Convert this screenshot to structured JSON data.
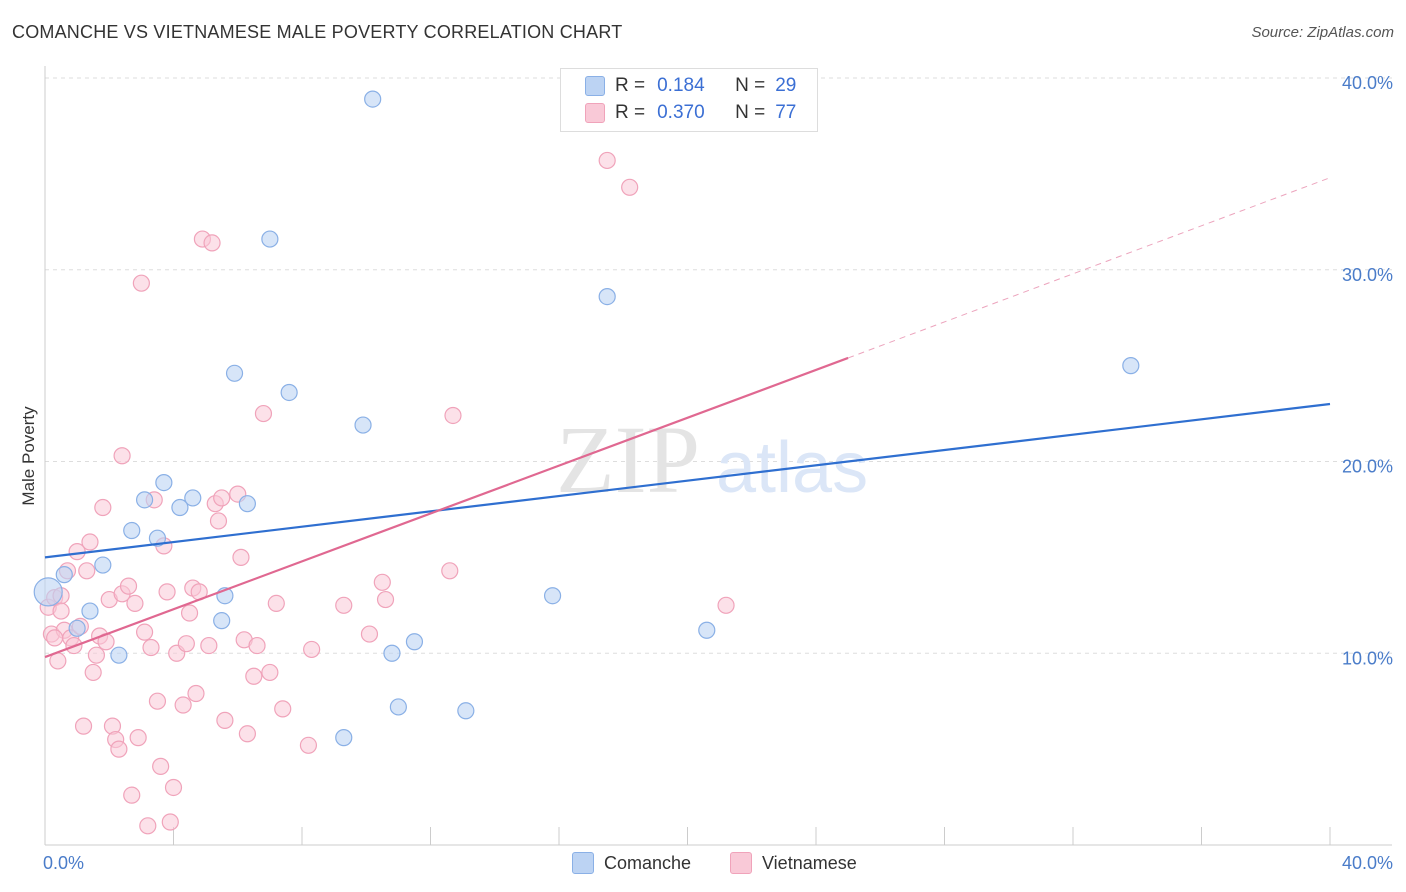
{
  "header": {
    "title": "COMANCHE VS VIETNAMESE MALE POVERTY CORRELATION CHART",
    "source": "Source: ZipAtlas.com"
  },
  "colors": {
    "comanche_fill": "#bcd3f3",
    "comanche_stroke": "#8ab0e6",
    "comanche_line": "#2f6fd0",
    "vietnamese_fill": "#f9c9d7",
    "vietnamese_stroke": "#f0a3ba",
    "vietnamese_line": "#e06891",
    "tick_text": "#4a7cc9",
    "grid": "#dddddd"
  },
  "legend": {
    "rows": [
      {
        "r_label": "R =",
        "r_value": "0.184",
        "n_label": "N =",
        "n_value": "29"
      },
      {
        "r_label": "R =",
        "r_value": "0.370",
        "n_label": "N =",
        "n_value": "77"
      }
    ]
  },
  "bottom_legend": {
    "comanche": "Comanche",
    "vietnamese": "Vietnamese"
  },
  "watermark": {
    "zip": "ZIP",
    "atlas": "atlas"
  },
  "chart_data": {
    "type": "scatter",
    "title": "COMANCHE VS VIETNAMESE MALE POVERTY CORRELATION CHART",
    "xlabel": "",
    "ylabel": "Male Poverty",
    "xlim": [
      0,
      40
    ],
    "ylim": [
      0,
      40
    ],
    "x_tick_labels": [
      {
        "value": 0,
        "label": "0.0%"
      },
      {
        "value": 40,
        "label": "40.0%"
      }
    ],
    "y_tick_labels": [
      {
        "value": 10,
        "label": "10.0%"
      },
      {
        "value": 20,
        "label": "20.0%"
      },
      {
        "value": 30,
        "label": "30.0%"
      },
      {
        "value": 40,
        "label": "40.0%"
      }
    ],
    "series": [
      {
        "name": "Comanche",
        "r": 0.184,
        "n": 29,
        "trend": {
          "x0": 0,
          "y0": 15.0,
          "x1": 40,
          "y1": 23.0,
          "dashed_to": null
        },
        "points": [
          [
            0.1,
            13.2
          ],
          [
            0.6,
            14.1
          ],
          [
            1.0,
            11.3
          ],
          [
            1.4,
            12.2
          ],
          [
            1.8,
            14.6
          ],
          [
            2.3,
            9.9
          ],
          [
            2.7,
            16.4
          ],
          [
            3.1,
            18.0
          ],
          [
            3.5,
            16.0
          ],
          [
            3.7,
            18.9
          ],
          [
            4.2,
            17.6
          ],
          [
            4.6,
            18.1
          ],
          [
            5.5,
            11.7
          ],
          [
            5.6,
            13.0
          ],
          [
            5.9,
            24.6
          ],
          [
            6.3,
            17.8
          ],
          [
            7.0,
            31.6
          ],
          [
            7.6,
            23.6
          ],
          [
            9.3,
            5.6
          ],
          [
            9.9,
            21.9
          ],
          [
            10.2,
            38.9
          ],
          [
            10.8,
            10.0
          ],
          [
            11.0,
            7.2
          ],
          [
            11.5,
            10.6
          ],
          [
            13.1,
            7.0
          ],
          [
            15.8,
            13.0
          ],
          [
            17.5,
            28.6
          ],
          [
            20.6,
            11.2
          ],
          [
            33.8,
            25.0
          ]
        ]
      },
      {
        "name": "Vietnamese",
        "r": 0.37,
        "n": 77,
        "trend": {
          "x0": 0,
          "y0": 9.8,
          "x1": 25.0,
          "y1": 25.4,
          "dashed_to": {
            "x": 40,
            "y": 34.8
          }
        },
        "points": [
          [
            0.1,
            12.4
          ],
          [
            0.2,
            11.0
          ],
          [
            0.3,
            12.9
          ],
          [
            0.4,
            9.6
          ],
          [
            0.5,
            13.0
          ],
          [
            0.6,
            11.2
          ],
          [
            0.7,
            14.3
          ],
          [
            0.8,
            10.8
          ],
          [
            0.9,
            10.4
          ],
          [
            1.0,
            15.3
          ],
          [
            1.2,
            6.2
          ],
          [
            1.3,
            14.3
          ],
          [
            1.4,
            15.8
          ],
          [
            1.5,
            9.0
          ],
          [
            1.6,
            9.9
          ],
          [
            1.7,
            10.9
          ],
          [
            1.8,
            17.6
          ],
          [
            1.9,
            10.6
          ],
          [
            2.0,
            12.8
          ],
          [
            2.1,
            6.2
          ],
          [
            2.2,
            5.5
          ],
          [
            2.3,
            5.0
          ],
          [
            2.4,
            13.1
          ],
          [
            2.4,
            20.3
          ],
          [
            2.6,
            13.5
          ],
          [
            2.7,
            2.6
          ],
          [
            2.8,
            12.6
          ],
          [
            2.9,
            5.6
          ],
          [
            3.0,
            29.3
          ],
          [
            3.1,
            11.1
          ],
          [
            3.2,
            1.0
          ],
          [
            3.3,
            10.3
          ],
          [
            3.4,
            18.0
          ],
          [
            3.5,
            7.5
          ],
          [
            3.6,
            4.1
          ],
          [
            3.7,
            15.6
          ],
          [
            3.8,
            13.2
          ],
          [
            3.9,
            1.2
          ],
          [
            4.0,
            3.0
          ],
          [
            4.1,
            10.0
          ],
          [
            4.3,
            7.3
          ],
          [
            4.4,
            10.5
          ],
          [
            4.5,
            12.1
          ],
          [
            4.6,
            13.4
          ],
          [
            4.7,
            7.9
          ],
          [
            4.8,
            13.2
          ],
          [
            4.9,
            31.6
          ],
          [
            5.1,
            10.4
          ],
          [
            5.2,
            31.4
          ],
          [
            5.3,
            17.8
          ],
          [
            5.4,
            16.9
          ],
          [
            5.5,
            18.1
          ],
          [
            5.6,
            6.5
          ],
          [
            6.0,
            18.3
          ],
          [
            6.1,
            15.0
          ],
          [
            6.2,
            10.7
          ],
          [
            6.3,
            5.8
          ],
          [
            6.5,
            8.8
          ],
          [
            6.6,
            10.4
          ],
          [
            6.8,
            22.5
          ],
          [
            7.0,
            9.0
          ],
          [
            7.2,
            12.6
          ],
          [
            7.4,
            7.1
          ],
          [
            8.2,
            5.2
          ],
          [
            8.3,
            10.2
          ],
          [
            9.3,
            12.5
          ],
          [
            10.1,
            11.0
          ],
          [
            10.5,
            13.7
          ],
          [
            10.6,
            12.8
          ],
          [
            12.6,
            14.3
          ],
          [
            12.7,
            22.4
          ],
          [
            17.5,
            35.7
          ],
          [
            18.2,
            34.3
          ],
          [
            21.2,
            12.5
          ],
          [
            0.3,
            10.8
          ],
          [
            0.5,
            12.2
          ],
          [
            1.1,
            11.4
          ]
        ]
      }
    ]
  }
}
